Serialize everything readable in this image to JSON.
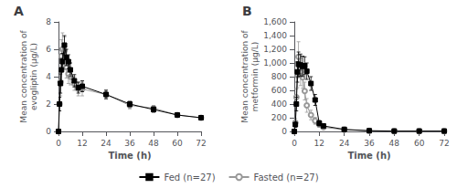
{
  "chart_data": [
    {
      "type": "line",
      "title": "A",
      "xlabel": "Time (h)",
      "ylabel": "Mean concentration of\nevogliptin (μg/L)",
      "xlim": [
        0,
        72
      ],
      "ylim": [
        0,
        8
      ],
      "xticks": [
        0,
        12,
        24,
        36,
        48,
        60,
        72
      ],
      "yticks": [
        0,
        2,
        4,
        6,
        8
      ],
      "grid": false,
      "legend": "bottom",
      "x": [
        0,
        0.5,
        1,
        1.5,
        2,
        3,
        4,
        5,
        6,
        8,
        10,
        12,
        24,
        36,
        48,
        60,
        72
      ],
      "series": [
        {
          "name": "Fed (n=27)",
          "color": "#000000",
          "marker": "square",
          "values": [
            0.0,
            2.0,
            3.5,
            4.5,
            5.1,
            6.3,
            5.4,
            5.1,
            4.5,
            3.7,
            3.2,
            3.3,
            2.7,
            2.0,
            1.6,
            1.2,
            1.0
          ],
          "errors": [
            0.0,
            0.5,
            0.7,
            0.8,
            0.6,
            0.7,
            0.6,
            0.5,
            0.5,
            0.45,
            0.4,
            0.4,
            0.3,
            0.2,
            0.2,
            0.15,
            0.1
          ]
        },
        {
          "name": "Fasted (n=27)",
          "color": "#999999",
          "marker": "circle",
          "values": [
            0.0,
            2.0,
            3.6,
            5.5,
            6.0,
            5.9,
            4.7,
            4.2,
            4.0,
            3.5,
            3.1,
            3.1,
            2.7,
            1.9,
            1.7,
            1.2,
            1.0
          ],
          "errors": [
            0.0,
            0.5,
            1.0,
            1.2,
            1.2,
            1.0,
            0.8,
            0.7,
            0.6,
            0.5,
            0.5,
            0.5,
            0.35,
            0.25,
            0.2,
            0.15,
            0.1
          ]
        }
      ]
    },
    {
      "type": "line",
      "title": "B",
      "xlabel": "Time (h)",
      "ylabel": "Mean concentration of\nmetformin (μg/L)",
      "xlim": [
        0,
        72
      ],
      "ylim": [
        0,
        1600
      ],
      "xticks": [
        0,
        12,
        24,
        36,
        48,
        60,
        72
      ],
      "yticks": [
        0,
        200,
        400,
        600,
        800,
        {
          "value": 1000,
          "label": "1,000"
        },
        {
          "value": 1200,
          "label": "1,200"
        },
        {
          "value": 1400,
          "label": "1,400"
        },
        {
          "value": 1600,
          "label": "1,600"
        }
      ],
      "grid": false,
      "legend": "bottom",
      "x": [
        0,
        0.5,
        1,
        1.5,
        2,
        3,
        4,
        5,
        6,
        8,
        10,
        12,
        14,
        24,
        36,
        48,
        60,
        72
      ],
      "series": [
        {
          "name": "Fed (n=27)",
          "color": "#000000",
          "marker": "square",
          "values": [
            0,
            100,
            400,
            870,
            980,
            970,
            950,
            960,
            880,
            700,
            460,
            120,
            80,
            30,
            10,
            5,
            5,
            5
          ],
          "errors": [
            0,
            40,
            100,
            150,
            180,
            160,
            150,
            130,
            120,
            100,
            80,
            40,
            30,
            10,
            5,
            3,
            3,
            3
          ]
        },
        {
          "name": "Fasted (n=27)",
          "color": "#999999",
          "marker": "circle",
          "values": [
            0,
            130,
            500,
            820,
            1090,
            870,
            790,
            590,
            380,
            240,
            155,
            100,
            60,
            25,
            10,
            5,
            5,
            5
          ],
          "errors": [
            0,
            60,
            120,
            180,
            220,
            200,
            160,
            130,
            100,
            70,
            50,
            40,
            25,
            10,
            5,
            3,
            3,
            3
          ]
        }
      ]
    }
  ]
}
